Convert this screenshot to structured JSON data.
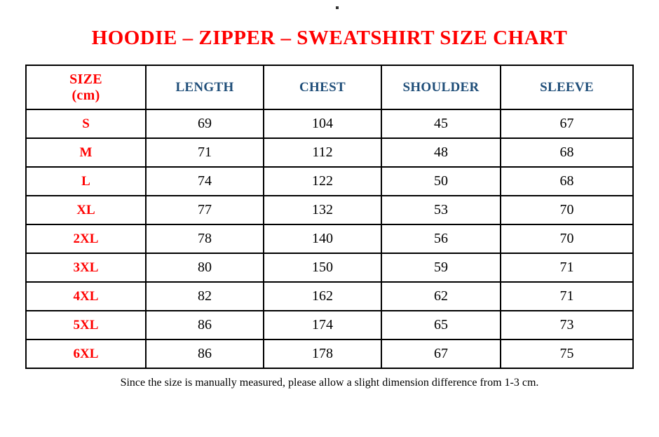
{
  "title": "HOODIE – ZIPPER – SWEATSHIRT SIZE CHART",
  "footnote": "Since the size is manually measured, please allow a slight dimension difference from 1-3 cm.",
  "colors": {
    "title_red": "#ff0000",
    "size_label_red": "#ff0000",
    "header_blue": "#1f4e79",
    "value_black": "#000000",
    "border_black": "#000000",
    "background": "#ffffff"
  },
  "table": {
    "size_header_line1": "SIZE",
    "size_header_line2": "(cm)",
    "header": [
      "SIZE (cm)",
      "LENGTH",
      "CHEST",
      "SHOULDER",
      "SLEEVE"
    ],
    "rows": [
      {
        "size": "S",
        "length": "69",
        "chest": "104",
        "shoulder": "45",
        "sleeve": "67"
      },
      {
        "size": "M",
        "length": "71",
        "chest": "112",
        "shoulder": "48",
        "sleeve": "68"
      },
      {
        "size": "L",
        "length": "74",
        "chest": "122",
        "shoulder": "50",
        "sleeve": "68"
      },
      {
        "size": "XL",
        "length": "77",
        "chest": "132",
        "shoulder": "53",
        "sleeve": "70"
      },
      {
        "size": "2XL",
        "length": "78",
        "chest": "140",
        "shoulder": "56",
        "sleeve": "70"
      },
      {
        "size": "3XL",
        "length": "80",
        "chest": "150",
        "shoulder": "59",
        "sleeve": "71"
      },
      {
        "size": "4XL",
        "length": "82",
        "chest": "162",
        "shoulder": "62",
        "sleeve": "71"
      },
      {
        "size": "5XL",
        "length": "86",
        "chest": "174",
        "shoulder": "65",
        "sleeve": "73"
      },
      {
        "size": "6XL",
        "length": "86",
        "chest": "178",
        "shoulder": "67",
        "sleeve": "75"
      }
    ]
  },
  "chart_data": {
    "type": "table",
    "title": "HOODIE – ZIPPER – SWEATSHIRT SIZE CHART",
    "columns": [
      "SIZE (cm)",
      "LENGTH",
      "CHEST",
      "SHOULDER",
      "SLEEVE"
    ],
    "rows": [
      [
        "S",
        69,
        104,
        45,
        67
      ],
      [
        "M",
        71,
        112,
        48,
        68
      ],
      [
        "L",
        74,
        122,
        50,
        68
      ],
      [
        "XL",
        77,
        132,
        53,
        70
      ],
      [
        "2XL",
        78,
        140,
        56,
        70
      ],
      [
        "3XL",
        80,
        150,
        59,
        71
      ],
      [
        "4XL",
        82,
        162,
        62,
        71
      ],
      [
        "5XL",
        86,
        174,
        65,
        73
      ],
      [
        "6XL",
        86,
        178,
        67,
        75
      ]
    ],
    "footnote": "Since the size is manually measured, please allow a slight dimension difference from 1-3 cm."
  }
}
